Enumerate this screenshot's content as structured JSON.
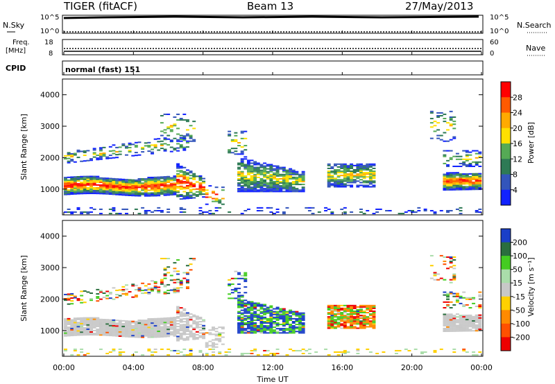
{
  "header": {
    "title": "TIGER (fitACF)",
    "beam": "Beam 13",
    "date": "27/May/2013"
  },
  "ops_panels": {
    "nsky": {
      "label": "N.Sky",
      "ticks": [
        "10^5",
        "10^0"
      ]
    },
    "nsearch": {
      "label": "N.Search",
      "ticks": [
        "10^5",
        "10^0"
      ]
    },
    "freq": {
      "label_line1": "Freq.",
      "label_line2": "[MHz]",
      "ticks": [
        "18",
        "8"
      ]
    },
    "nave": {
      "label": "Nave",
      "ticks": [
        "60",
        "0"
      ]
    },
    "cpid": {
      "label": "CPID",
      "value": "normal (fast) 151"
    }
  },
  "chart_data": [
    {
      "type": "heatmap",
      "name": "power",
      "ylabel": "Slant Range [km]",
      "xlabel": "",
      "x_range_hours": [
        0,
        24
      ],
      "ylim": [
        180,
        4500
      ],
      "yticks": [
        "4000",
        "3000",
        "2000",
        "1000"
      ],
      "colorbar": {
        "label": "Power [dB]",
        "ticks": [
          "28",
          "24",
          "20",
          "16",
          "12",
          "8",
          "4"
        ],
        "colors": [
          "#ff0000",
          "#ff5a00",
          "#ffaa00",
          "#ffe000",
          "#55aa55",
          "#2e7a55",
          "#3355bb",
          "#1122ff"
        ]
      }
    },
    {
      "type": "heatmap",
      "name": "velocity",
      "ylabel": "Slant Range [km]",
      "xlabel": "Time UT",
      "x_range_hours": [
        0,
        24
      ],
      "ylim": [
        180,
        4500
      ],
      "yticks": [
        "4000",
        "3000",
        "2000",
        "1000"
      ],
      "xticks": [
        "00:00",
        "04:00",
        "08:00",
        "12:00",
        "16:00",
        "20:00",
        "00:00"
      ],
      "colorbar": {
        "label": "Velocity [m s⁻¹]",
        "ticks": [
          "200",
          "100",
          "50",
          "15",
          "-15",
          "-50",
          "-100",
          "-200"
        ],
        "colors": [
          "#1a3fc8",
          "#2a6e3e",
          "#44cc22",
          "#aaddaa",
          "#c8c8c8",
          "#ffd000",
          "#ff8a00",
          "#ff5000",
          "#ee0000"
        ]
      }
    }
  ]
}
